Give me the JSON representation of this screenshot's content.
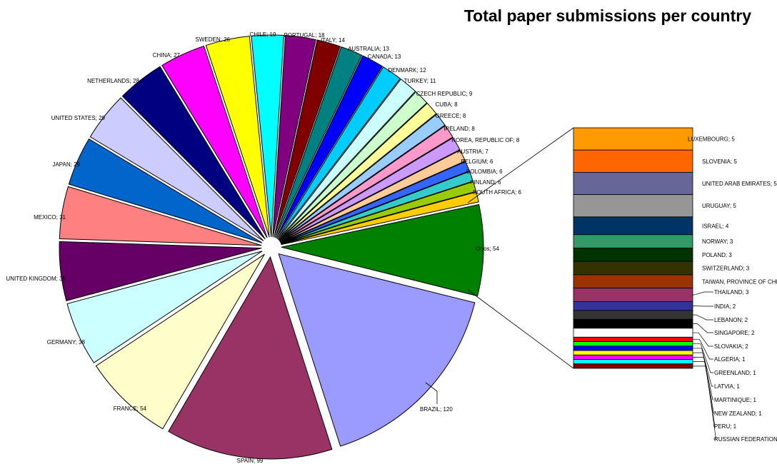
{
  "chart_data": {
    "type": "pie",
    "title": "Total paper submissions per country",
    "slices": [
      {
        "label": "BRAZIL; 120",
        "value": 120,
        "color": "#9b9bff"
      },
      {
        "label": "SPAIN; 99",
        "value": 99,
        "color": "#993366"
      },
      {
        "label": "FRANCE; 54",
        "value": 54,
        "color": "#ffffcc"
      },
      {
        "label": "GERMANY; 38",
        "value": 38,
        "color": "#ccffff"
      },
      {
        "label": "UNITED KINGDOM; 35",
        "value": 35,
        "color": "#660066"
      },
      {
        "label": "MEXICO; 31",
        "value": 31,
        "color": "#ff8080"
      },
      {
        "label": "JAPAN; 29",
        "value": 29,
        "color": "#0066cc"
      },
      {
        "label": "UNITED STATES; 29",
        "value": 29,
        "color": "#ccccff"
      },
      {
        "label": "NETHERLANDS; 28",
        "value": 28,
        "color": "#000080"
      },
      {
        "label": "CHINA; 27",
        "value": 27,
        "color": "#ff00ff"
      },
      {
        "label": "SWEDEN; 26",
        "value": 26,
        "color": "#ffff00"
      },
      {
        "label": "CHILE; 19",
        "value": 19,
        "color": "#00ffff"
      },
      {
        "label": "PORTUGAL; 18",
        "value": 18,
        "color": "#800080"
      },
      {
        "label": "ITALY; 14",
        "value": 14,
        "color": "#800000"
      },
      {
        "label": "AUSTRALIA; 13",
        "value": 13,
        "color": "#008080"
      },
      {
        "label": "CANADA; 13",
        "value": 13,
        "color": "#0000ff"
      },
      {
        "label": "DENMARK; 12",
        "value": 12,
        "color": "#00ccff"
      },
      {
        "label": "TURKEY; 11",
        "value": 11,
        "color": "#ccffff"
      },
      {
        "label": "CZECH REPUBLIC; 9",
        "value": 9,
        "color": "#ccffcc"
      },
      {
        "label": "CUBA; 8",
        "value": 8,
        "color": "#ffff99"
      },
      {
        "label": "GREECE; 8",
        "value": 8,
        "color": "#99ccff"
      },
      {
        "label": "IRELAND; 8",
        "value": 8,
        "color": "#ff99cc"
      },
      {
        "label": "KOREA, REPUBLIC OF; 8",
        "value": 8,
        "color": "#cc99ff"
      },
      {
        "label": "AUSTRIA; 7",
        "value": 7,
        "color": "#ffcc99"
      },
      {
        "label": "BELGIUM; 6",
        "value": 6,
        "color": "#3366ff"
      },
      {
        "label": "COLOMBIA; 6",
        "value": 6,
        "color": "#33cccc"
      },
      {
        "label": "FINLAND; 6",
        "value": 6,
        "color": "#99cc00"
      },
      {
        "label": "SOUTH AFRICA; 6",
        "value": 6,
        "color": "#ffcc00"
      },
      {
        "label": "Otros; 54",
        "value": 54,
        "color": "#008000"
      }
    ],
    "others_breakdown": [
      {
        "label": "LUXEMBOURG; 5",
        "value": 5,
        "color": "#ff9900"
      },
      {
        "label": "SLOVENIA; 5",
        "value": 5,
        "color": "#ff6600"
      },
      {
        "label": "UNITED ARAB EMIRATES; 5",
        "value": 5,
        "color": "#666699"
      },
      {
        "label": "URUGUAY; 5",
        "value": 5,
        "color": "#969696"
      },
      {
        "label": "ISRAEL; 4",
        "value": 4,
        "color": "#003366"
      },
      {
        "label": "NORWAY; 3",
        "value": 3,
        "color": "#339966"
      },
      {
        "label": "POLAND; 3",
        "value": 3,
        "color": "#003300"
      },
      {
        "label": "SWITZERLAND; 3",
        "value": 3,
        "color": "#333300"
      },
      {
        "label": "TAIWAN, PROVINCE OF CHI",
        "value": 3,
        "color": "#993300"
      },
      {
        "label": "THAILAND; 3",
        "value": 3,
        "color": "#993366"
      },
      {
        "label": "INDIA; 2",
        "value": 2,
        "color": "#333399"
      },
      {
        "label": "LEBANON; 2",
        "value": 2,
        "color": "#333333"
      },
      {
        "label": "SINGAPORE; 2",
        "value": 2,
        "color": "#000000"
      },
      {
        "label": "SLOVAKIA; 2",
        "value": 2,
        "color": "#ffffff"
      },
      {
        "label": "ALGERIA; 1",
        "value": 1,
        "color": "#ff0000"
      },
      {
        "label": "GREENLAND; 1",
        "value": 1,
        "color": "#00ff00"
      },
      {
        "label": "LATVIA; 1",
        "value": 1,
        "color": "#0000ff"
      },
      {
        "label": "MARTINIQUE; 1",
        "value": 1,
        "color": "#ffff00"
      },
      {
        "label": "NEW ZEALAND; 1",
        "value": 1,
        "color": "#ff00ff"
      },
      {
        "label": "PERU; 1",
        "value": 1,
        "color": "#00ffff"
      },
      {
        "label": "RUSSIAN FEDERATION",
        "value": 1,
        "color": "#800000"
      }
    ]
  }
}
